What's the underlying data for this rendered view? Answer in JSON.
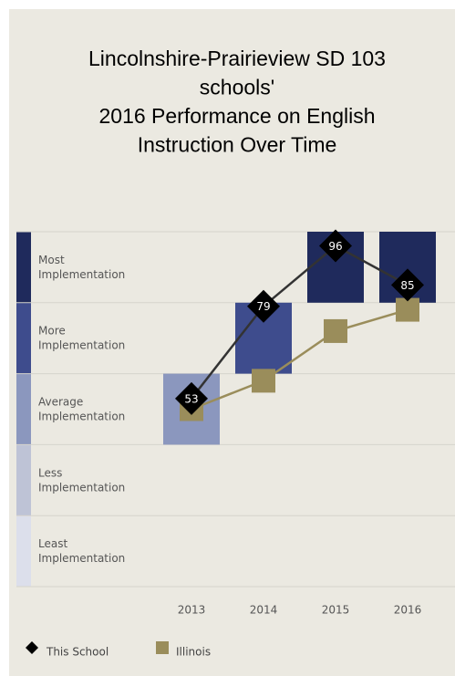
{
  "chart_data": {
    "type": "line",
    "title": [
      "Lincolnshire-Prairieview SD 103",
      "schools'",
      "2016 Performance on English",
      "Instruction Over Time"
    ],
    "categories": [
      "2013",
      "2014",
      "2015",
      "2016"
    ],
    "series": [
      {
        "name": "This School",
        "color": "#333333",
        "marker": "diamond",
        "values": [
          53,
          79,
          96,
          85
        ]
      },
      {
        "name": "Illinois",
        "color": "#9a8d5b",
        "marker": "square",
        "values": [
          50,
          58,
          72,
          78
        ]
      }
    ],
    "bands": [
      {
        "label": "Least Implementation",
        "color": "#dcdfeb"
      },
      {
        "label": "Less Implementation",
        "color": "#bec3d6"
      },
      {
        "label": "Average Implementation",
        "color": "#8b97be"
      },
      {
        "label": "More Implementation",
        "color": "#3e4c8d"
      },
      {
        "label": "Most Implementation",
        "color": "#1f2a5c"
      }
    ],
    "ylim": [
      0,
      100
    ],
    "yticks": [
      0,
      20,
      40,
      60,
      80,
      100
    ],
    "grid": true
  }
}
